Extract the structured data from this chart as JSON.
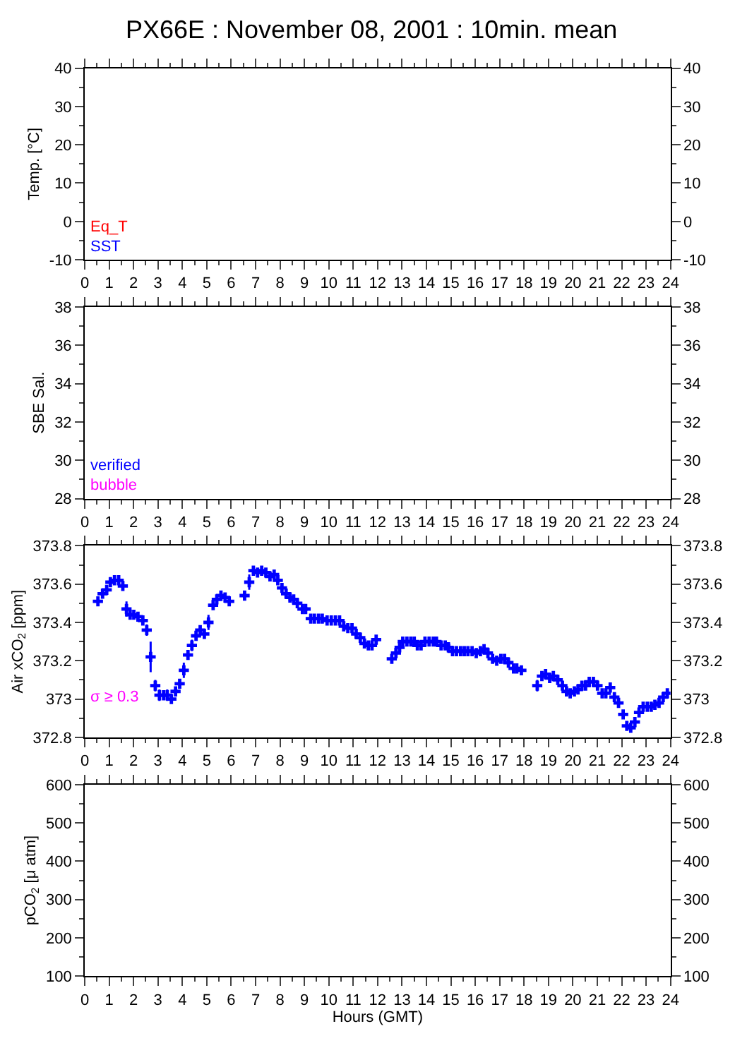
{
  "chart_data": [
    {
      "type": "line",
      "title": "PX66E : November 08, 2001 : 10min. mean",
      "ylabel": "Temp. [°C]",
      "annotations": [
        "Eq_T",
        "SST"
      ],
      "xlim": [
        0,
        24
      ],
      "xticks": [
        0,
        1,
        2,
        3,
        4,
        5,
        6,
        7,
        8,
        9,
        10,
        11,
        12,
        13,
        14,
        15,
        16,
        17,
        18,
        19,
        20,
        21,
        22,
        23,
        24
      ],
      "ylim": [
        -10,
        40
      ],
      "yticks": [
        -10,
        0,
        10,
        20,
        30,
        40
      ],
      "y2lim": [
        -10,
        40
      ],
      "y2ticks": [
        -10,
        0,
        10,
        20,
        30,
        40
      ]
    },
    {
      "type": "line",
      "ylabel": "SBE Sal.",
      "annotations": [
        "verified",
        "bubble"
      ],
      "xlim": [
        0,
        24
      ],
      "xticks": [
        0,
        1,
        2,
        3,
        4,
        5,
        6,
        7,
        8,
        9,
        10,
        11,
        12,
        13,
        14,
        15,
        16,
        17,
        18,
        19,
        20,
        21,
        22,
        23,
        24
      ],
      "ylim": [
        28,
        38
      ],
      "yticks": [
        28,
        30,
        32,
        34,
        36,
        38
      ],
      "y2lim": [
        28,
        38
      ],
      "y2ticks": [
        28,
        30,
        32,
        34,
        36,
        38
      ]
    },
    {
      "type": "scatter",
      "ylabel": "Air xCO$_{2}$ [ppm]",
      "annotations": [
        "σ ≥ 0.3"
      ],
      "marker": "cross",
      "series": [
        {
          "color": "#0000ff",
          "x": [
            0.54,
            0.73,
            0.9,
            1.05,
            1.22,
            1.39,
            1.56,
            1.71,
            1.86,
            2.01,
            2.18,
            2.38,
            2.54,
            2.7,
            2.89,
            3.06,
            3.23,
            3.38,
            3.55,
            3.72,
            3.89,
            4.06,
            4.23,
            4.39,
            4.56,
            4.73,
            4.9,
            5.07,
            5.26,
            5.41,
            5.58,
            5.75,
            5.92,
            6.55,
            6.74,
            6.91,
            7.08,
            7.25,
            7.42,
            7.59,
            7.76,
            7.91,
            8.08,
            8.25,
            8.41,
            8.56,
            8.71,
            8.92,
            9.05,
            9.26,
            9.41,
            9.58,
            9.73,
            9.93,
            10.1,
            10.27,
            10.44,
            10.61,
            10.78,
            10.95,
            11.12,
            11.29,
            11.46,
            11.62,
            11.77,
            11.94,
            12.58,
            12.75,
            12.9,
            13.03,
            13.2,
            13.36,
            13.5,
            13.63,
            13.78,
            13.94,
            14.11,
            14.28,
            14.41,
            14.6,
            14.77,
            14.9,
            15.07,
            15.23,
            15.4,
            15.55,
            15.7,
            15.87,
            16.04,
            16.21,
            16.36,
            16.52,
            16.71,
            16.88,
            17.05,
            17.2,
            17.36,
            17.57,
            17.7,
            17.89,
            18.54,
            18.73,
            18.88,
            19.05,
            19.2,
            19.38,
            19.57,
            19.74,
            19.89,
            20.06,
            20.21,
            20.37,
            20.52,
            20.67,
            20.84,
            21.01,
            21.2,
            21.35,
            21.53,
            21.7,
            21.87,
            22.06,
            22.21,
            22.37,
            22.54,
            22.71,
            22.88,
            23.05,
            23.21,
            23.36,
            23.53,
            23.7,
            23.87
          ],
          "values": [
            373.51,
            373.55,
            373.57,
            373.61,
            373.62,
            373.62,
            373.59,
            373.47,
            373.44,
            373.44,
            373.43,
            373.41,
            373.36,
            373.22,
            373.07,
            373.02,
            373.02,
            373.02,
            373.0,
            373.04,
            373.08,
            373.15,
            373.23,
            373.28,
            373.33,
            373.36,
            373.34,
            373.4,
            373.49,
            373.52,
            373.54,
            373.53,
            373.51,
            373.54,
            373.61,
            373.67,
            373.66,
            373.67,
            373.66,
            373.64,
            373.65,
            373.62,
            373.58,
            373.55,
            373.53,
            373.52,
            373.5,
            373.47,
            373.47,
            373.42,
            373.42,
            373.42,
            373.42,
            373.41,
            373.41,
            373.41,
            373.41,
            373.38,
            373.37,
            373.37,
            373.34,
            373.32,
            373.29,
            373.28,
            373.28,
            373.31,
            373.21,
            373.24,
            373.27,
            373.3,
            373.3,
            373.3,
            373.3,
            373.28,
            373.28,
            373.3,
            373.3,
            373.3,
            373.3,
            373.28,
            373.28,
            373.27,
            373.25,
            373.25,
            373.25,
            373.25,
            373.25,
            373.25,
            373.24,
            373.25,
            373.26,
            373.24,
            373.21,
            373.2,
            373.21,
            373.21,
            373.19,
            373.16,
            373.16,
            373.15,
            373.07,
            373.12,
            373.13,
            373.11,
            373.12,
            373.1,
            373.07,
            373.04,
            373.03,
            373.04,
            373.05,
            373.07,
            373.07,
            373.09,
            373.09,
            373.07,
            373.03,
            373.03,
            373.06,
            373.01,
            372.98,
            372.92,
            372.86,
            372.85,
            372.88,
            372.93,
            372.96,
            372.96,
            372.96,
            372.97,
            372.98,
            373.01,
            373.03
          ],
          "errors": [
            0.02,
            0.02,
            0.02,
            0.02,
            0.02,
            0.02,
            0.02,
            0.04,
            0.02,
            0.02,
            0.02,
            0.02,
            0.03,
            0.08,
            0.03,
            0.03,
            0.02,
            0.03,
            0.02,
            0.02,
            0.02,
            0.04,
            0.02,
            0.03,
            0.02,
            0.02,
            0.02,
            0.04,
            0.02,
            0.02,
            0.02,
            0.02,
            0.02,
            0.02,
            0.04,
            0.02,
            0.02,
            0.02,
            0.02,
            0.02,
            0.02,
            0.02,
            0.02,
            0.02,
            0.02,
            0.02,
            0.02,
            0.02,
            0.02,
            0.02,
            0.02,
            0.02,
            0.02,
            0.02,
            0.02,
            0.02,
            0.02,
            0.02,
            0.02,
            0.02,
            0.02,
            0.02,
            0.02,
            0.02,
            0.02,
            0.02,
            0.02,
            0.02,
            0.02,
            0.02,
            0.02,
            0.02,
            0.02,
            0.02,
            0.02,
            0.02,
            0.02,
            0.02,
            0.02,
            0.02,
            0.02,
            0.02,
            0.02,
            0.02,
            0.02,
            0.02,
            0.02,
            0.02,
            0.02,
            0.02,
            0.02,
            0.02,
            0.02,
            0.02,
            0.02,
            0.02,
            0.02,
            0.02,
            0.02,
            0.02,
            0.03,
            0.02,
            0.02,
            0.02,
            0.02,
            0.02,
            0.02,
            0.02,
            0.02,
            0.02,
            0.02,
            0.02,
            0.02,
            0.02,
            0.02,
            0.02,
            0.02,
            0.02,
            0.02,
            0.02,
            0.02,
            0.02,
            0.02,
            0.02,
            0.02,
            0.02,
            0.02,
            0.02,
            0.02,
            0.02,
            0.02,
            0.02,
            0.02
          ]
        }
      ],
      "xlim": [
        0,
        24
      ],
      "xticks": [
        0,
        1,
        2,
        3,
        4,
        5,
        6,
        7,
        8,
        9,
        10,
        11,
        12,
        13,
        14,
        15,
        16,
        17,
        18,
        19,
        20,
        21,
        22,
        23,
        24
      ],
      "ylim": [
        372.8,
        373.8
      ],
      "yticks": [
        372.8,
        373,
        373.2,
        373.4,
        373.6,
        373.8
      ],
      "y2lim": [
        372.8,
        373.8
      ],
      "y2ticks": [
        372.8,
        373,
        373.2,
        373.4,
        373.6,
        373.8
      ]
    },
    {
      "type": "line",
      "ylabel": "pCO$_{2}$ [μ atm]",
      "xlabel": "Hours (GMT)",
      "xlim": [
        0,
        24
      ],
      "xticks": [
        0,
        1,
        2,
        3,
        4,
        5,
        6,
        7,
        8,
        9,
        10,
        11,
        12,
        13,
        14,
        15,
        16,
        17,
        18,
        19,
        20,
        21,
        22,
        23,
        24
      ],
      "ylim": [
        100,
        600
      ],
      "yticks": [
        100,
        200,
        300,
        400,
        500,
        600
      ],
      "y2lim": [
        100,
        600
      ],
      "y2ticks": [
        100,
        200,
        300,
        400,
        500,
        600
      ]
    }
  ]
}
